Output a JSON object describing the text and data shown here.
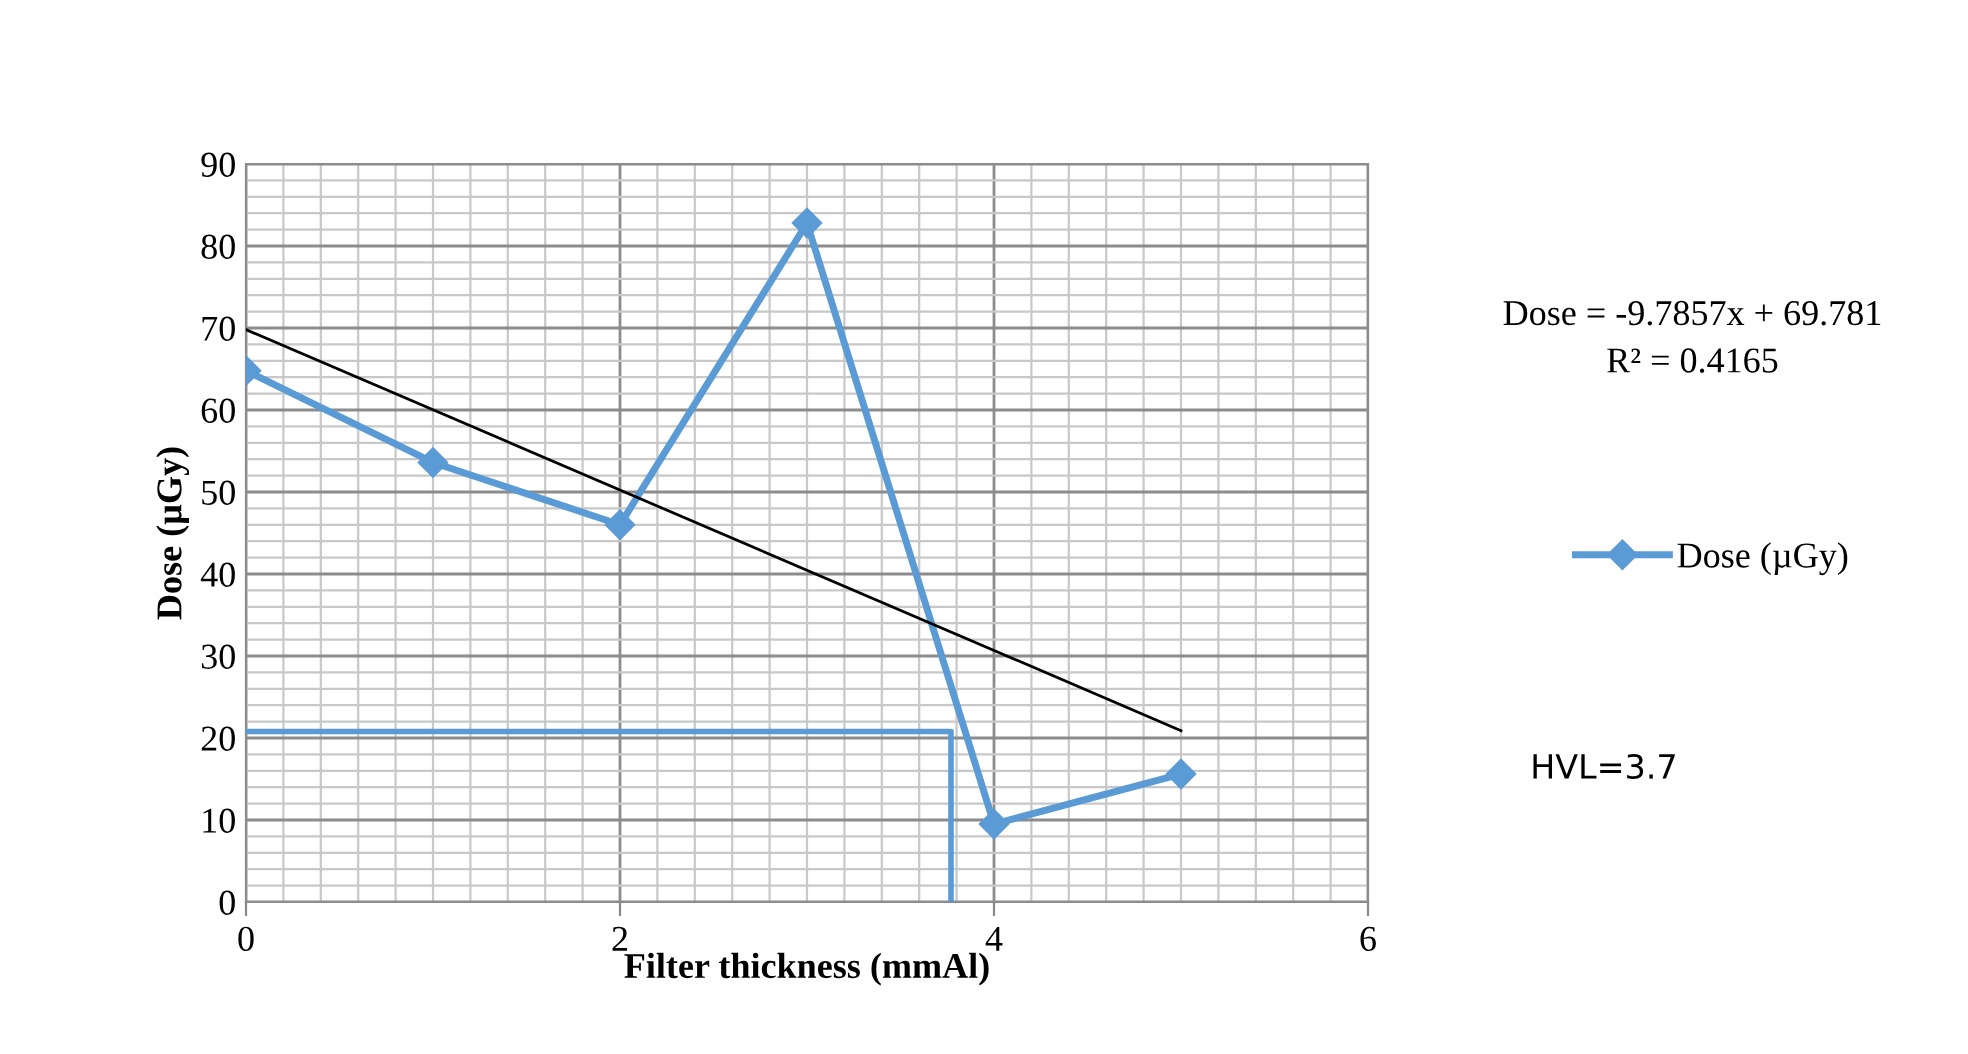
{
  "chart_data": {
    "type": "line",
    "xlabel": "Filter thickness (mmAl)",
    "ylabel": "Dose (µGy)",
    "x": [
      0,
      1,
      2,
      3,
      4,
      5
    ],
    "series": [
      {
        "name": "Dose (µGy)",
        "color": "#5b9bd5",
        "values": [
          64.8,
          53.6,
          46.0,
          82.8,
          9.5,
          15.6
        ],
        "marker": "diamond"
      },
      {
        "type": "line",
        "color": "#000000",
        "x": [
          0,
          5
        ],
        "values": [
          69.8,
          20.9
        ],
        "marker": "none"
      },
      {
        "type": "line",
        "color": "#5b9bd5",
        "x": [
          0,
          3.77,
          3.77
        ],
        "values": [
          20.8,
          20.8,
          0
        ],
        "marker": "none"
      }
    ],
    "xlim": [
      0,
      6
    ],
    "xticks": [
      0,
      2,
      4,
      6
    ],
    "ylim": [
      0,
      90
    ],
    "yticks": [
      0,
      10,
      20,
      30,
      40,
      50,
      60,
      70,
      80,
      90
    ],
    "grid": true,
    "legend": "right",
    "annotations": [
      "Dose = -9.7857x + 69.781",
      "R² = 0.4165",
      "HVL=3.7"
    ]
  }
}
